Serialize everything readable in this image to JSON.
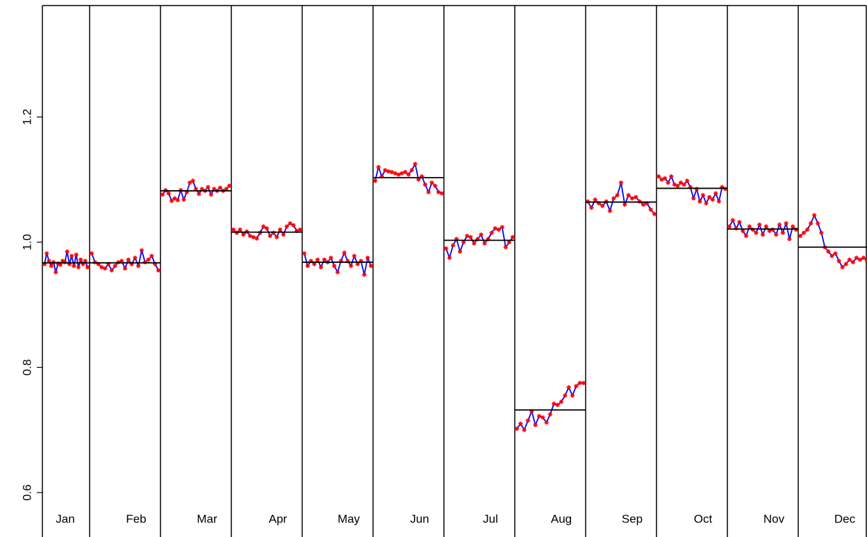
{
  "chart_data": {
    "type": "monthplot",
    "categories": [
      "Jan",
      "Feb",
      "Mar",
      "Apr",
      "May",
      "Jun",
      "Jul",
      "Aug",
      "Sep",
      "Oct",
      "Nov",
      "Dec"
    ],
    "line_color": "#0000ff",
    "point_color": "#ff0000",
    "mean_color": "#000000",
    "ylim": [
      0.529,
      1.378
    ],
    "yticks": [
      0.6,
      0.8,
      {
        "value": 1,
        "label": "1.0"
      },
      1.2
    ],
    "subseries": [
      {
        "mean": 0.967,
        "values": [
          0.965,
          0.982,
          0.97,
          0.962,
          0.968,
          0.952,
          0.966,
          0.964,
          0.97,
          0.968,
          0.985,
          0.965,
          0.978,
          0.962,
          0.98,
          0.96,
          0.972,
          0.965,
          0.97,
          0.96
        ]
      },
      {
        "mean": 0.967,
        "values": [
          0.982,
          0.968,
          0.965,
          0.96,
          0.958,
          0.965,
          0.955,
          0.962,
          0.968,
          0.97,
          0.958,
          0.972,
          0.965,
          0.975,
          0.962,
          0.987,
          0.968,
          0.972,
          0.978,
          0.965,
          0.955
        ]
      },
      {
        "mean": 1.082,
        "values": [
          1.076,
          1.083,
          1.078,
          1.066,
          1.07,
          1.067,
          1.083,
          1.068,
          1.08,
          1.095,
          1.098,
          1.085,
          1.077,
          1.085,
          1.082,
          1.088,
          1.076,
          1.085,
          1.082,
          1.087,
          1.082,
          1.085,
          1.09
        ]
      },
      {
        "mean": 1.016,
        "values": [
          1.02,
          1.015,
          1.02,
          1.012,
          1.017,
          1.01,
          1.008,
          1.006,
          1.015,
          1.025,
          1.022,
          1.01,
          1.015,
          1.008,
          1.02,
          1.012,
          1.025,
          1.03,
          1.027,
          1.018,
          1.02
        ]
      },
      {
        "mean": 0.968,
        "values": [
          0.982,
          0.962,
          0.97,
          0.965,
          0.972,
          0.96,
          0.972,
          0.968,
          0.975,
          0.962,
          0.952,
          0.97,
          0.983,
          0.97,
          0.962,
          0.978,
          0.965,
          0.97,
          0.948,
          0.975,
          0.962
        ]
      },
      {
        "mean": 1.103,
        "values": [
          1.098,
          1.12,
          1.105,
          1.115,
          1.113,
          1.112,
          1.11,
          1.108,
          1.11,
          1.112,
          1.108,
          1.115,
          1.125,
          1.1,
          1.105,
          1.092,
          1.08,
          1.095,
          1.09,
          1.08,
          1.078
        ]
      },
      {
        "mean": 1.003,
        "values": [
          0.99,
          0.975,
          0.995,
          1.005,
          0.985,
          1.0,
          1.01,
          1.008,
          0.998,
          1.005,
          1.012,
          0.998,
          1.005,
          1.015,
          1.022,
          1.02,
          1.024,
          0.992,
          1.0,
          1.008
        ]
      },
      {
        "mean": 0.732,
        "values": [
          0.702,
          0.71,
          0.7,
          0.715,
          0.73,
          0.708,
          0.722,
          0.72,
          0.712,
          0.725,
          0.742,
          0.74,
          0.745,
          0.755,
          0.768,
          0.755,
          0.77,
          0.775,
          0.775
        ]
      },
      {
        "mean": 1.064,
        "values": [
          1.065,
          1.055,
          1.068,
          1.062,
          1.058,
          1.065,
          1.05,
          1.07,
          1.075,
          1.095,
          1.06,
          1.075,
          1.07,
          1.072,
          1.065,
          1.06,
          1.062,
          1.052,
          1.045
        ]
      },
      {
        "mean": 1.086,
        "values": [
          1.105,
          1.1,
          1.102,
          1.095,
          1.105,
          1.092,
          1.09,
          1.095,
          1.092,
          1.098,
          1.088,
          1.07,
          1.085,
          1.065,
          1.075,
          1.062,
          1.072,
          1.068,
          1.078,
          1.065,
          1.088,
          1.085
        ]
      },
      {
        "mean": 1.021,
        "values": [
          1.025,
          1.035,
          1.022,
          1.032,
          1.018,
          1.01,
          1.025,
          1.02,
          1.015,
          1.028,
          1.012,
          1.025,
          1.018,
          1.02,
          1.012,
          1.028,
          1.015,
          1.03,
          1.005,
          1.025,
          1.02
        ]
      },
      {
        "mean": 0.992,
        "values": [
          1.01,
          1.015,
          1.02,
          1.03,
          1.043,
          1.03,
          1.015,
          0.992,
          0.985,
          0.978,
          0.982,
          0.97,
          0.96,
          0.965,
          0.972,
          0.968,
          0.975,
          0.972,
          0.975,
          0.97
        ]
      }
    ]
  }
}
